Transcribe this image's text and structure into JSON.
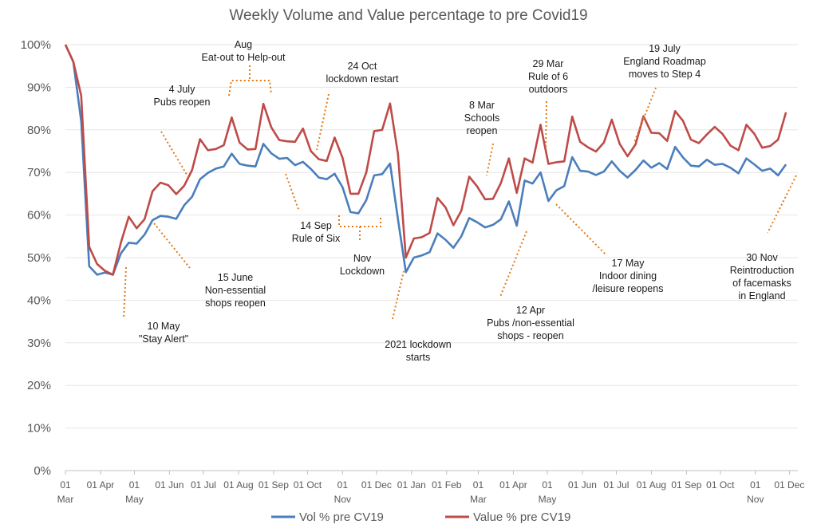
{
  "chart_data": {
    "type": "line",
    "title": "Weekly Volume and Value percentage to pre Covid19",
    "xlabel": "",
    "ylabel": "",
    "ylim": [
      0,
      100
    ],
    "y_ticks": [
      "0%",
      "10%",
      "20%",
      "30%",
      "40%",
      "50%",
      "60%",
      "70%",
      "80%",
      "90%",
      "100%"
    ],
    "x_ticks": [
      {
        "line1": "01",
        "line2": "Mar",
        "week": 0
      },
      {
        "line1": "01 Apr",
        "line2": "",
        "week": 4.43
      },
      {
        "line1": "01",
        "line2": "May",
        "week": 8.71
      },
      {
        "line1": "01 Jun",
        "line2": "",
        "week": 13.14
      },
      {
        "line1": "01 Jul",
        "line2": "",
        "week": 17.43
      },
      {
        "line1": "01 Aug",
        "line2": "",
        "week": 21.86
      },
      {
        "line1": "01 Sep",
        "line2": "",
        "week": 26.29
      },
      {
        "line1": "01 Oct",
        "line2": "",
        "week": 30.57
      },
      {
        "line1": "01",
        "line2": "Nov",
        "week": 35
      },
      {
        "line1": "01 Dec",
        "line2": "",
        "week": 39.29
      },
      {
        "line1": "01 Jan",
        "line2": "",
        "week": 43.71
      },
      {
        "line1": "01 Feb",
        "line2": "",
        "week": 48.14
      },
      {
        "line1": "01",
        "line2": "Mar",
        "week": 52.14
      },
      {
        "line1": "01 Apr",
        "line2": "",
        "week": 56.57
      },
      {
        "line1": "01",
        "line2": "May",
        "week": 60.86
      },
      {
        "line1": "01 Jun",
        "line2": "",
        "week": 65.29
      },
      {
        "line1": "01 Jul",
        "line2": "",
        "week": 69.57
      },
      {
        "line1": "01 Aug",
        "line2": "",
        "week": 74
      },
      {
        "line1": "01 Sep",
        "line2": "",
        "week": 78.43
      },
      {
        "line1": "01 Oct",
        "line2": "",
        "week": 82.71
      },
      {
        "line1": "01",
        "line2": "Nov",
        "week": 87.14
      },
      {
        "line1": "01 Dec",
        "line2": "",
        "week": 91.43
      }
    ],
    "x_weeks_max": 92.5,
    "series": [
      {
        "name": "Vol % pre CV19",
        "color": "#4a7ebb",
        "values": [
          100,
          96,
          82,
          48,
          46,
          46.5,
          46,
          51,
          53.5,
          53.3,
          55.4,
          58.8,
          59.8,
          59.6,
          59.1,
          62.3,
          64.3,
          68.4,
          69.9,
          70.9,
          71.4,
          74.4,
          72,
          71.6,
          71.4,
          76.7,
          74.5,
          73.2,
          73.4,
          71.7,
          72.5,
          70.8,
          68.8,
          68.4,
          69.7,
          66.5,
          60.7,
          60.4,
          63.5,
          69.3,
          69.6,
          72.1,
          59,
          46.6,
          50,
          50.5,
          51.3,
          55.7,
          54.2,
          52.3,
          55,
          59.3,
          58.3,
          57.1,
          57.7,
          59,
          63.2,
          57.5,
          68.1,
          67.4,
          70,
          63.3,
          65.8,
          66.8,
          73.6,
          70.4,
          70.2,
          69.4,
          70.2,
          72.6,
          70.4,
          68.8,
          70.6,
          72.8,
          71.1,
          72.2,
          70.8,
          76,
          73.5,
          71.6,
          71.4,
          73,
          71.8,
          72,
          71.1,
          69.8,
          73.3,
          71.9,
          70.4,
          70.9,
          69.3,
          71.9
        ]
      },
      {
        "name": "Value % pre CV19",
        "color": "#be4b48",
        "values": [
          100,
          96,
          88,
          52.5,
          48.5,
          46.9,
          46,
          53.5,
          59.6,
          56.9,
          59,
          65.6,
          67.6,
          67,
          64.9,
          66.9,
          70.6,
          77.8,
          75.2,
          75.5,
          76.4,
          82.9,
          77,
          75.4,
          75.5,
          86.1,
          80.6,
          77.6,
          77.3,
          77.2,
          80.3,
          75,
          73.1,
          72.7,
          78.2,
          73.4,
          65,
          65,
          70,
          79.7,
          80,
          86.2,
          74.3,
          50,
          54.5,
          54.8,
          55.8,
          64,
          61.8,
          57.6,
          61,
          69,
          66.7,
          63.7,
          63.8,
          67.5,
          73.3,
          65.2,
          73.3,
          72.3,
          81.2,
          72,
          72.4,
          72.6,
          83.1,
          77.2,
          75.9,
          74.9,
          77,
          82.4,
          76.7,
          73.8,
          76.6,
          83.2,
          79.3,
          79.2,
          77.4,
          84.4,
          82.1,
          77.7,
          76.9,
          78.9,
          80.7,
          79,
          76.3,
          75.2,
          81.2,
          79.1,
          75.8,
          76.2,
          77.7,
          84.1
        ]
      }
    ],
    "annotations": [
      {
        "lines": [
          "10 May",
          "\"Stay Alert\""
        ]
      },
      {
        "lines": [
          "15 June",
          "Non-essential",
          "shops reopen"
        ]
      },
      {
        "lines": [
          "4 July",
          "Pubs reopen"
        ]
      },
      {
        "lines": [
          "Aug",
          "Eat-out to Help-out"
        ]
      },
      {
        "lines": [
          "14 Sep",
          "Rule of Six"
        ]
      },
      {
        "lines": [
          "24 Oct",
          "lockdown restart"
        ]
      },
      {
        "lines": [
          "Nov",
          "Lockdown"
        ]
      },
      {
        "lines": [
          "2021 lockdown",
          "starts"
        ]
      },
      {
        "lines": [
          "8 Mar",
          "Schools",
          "reopen"
        ]
      },
      {
        "lines": [
          "29 Mar",
          "Rule of 6",
          "outdoors"
        ]
      },
      {
        "lines": [
          "12 Apr",
          "Pubs /non-essential",
          "shops - reopen"
        ]
      },
      {
        "lines": [
          "17 May",
          "Indoor dining",
          "/leisure reopens"
        ]
      },
      {
        "lines": [
          "19 July",
          "England  Roadmap",
          "moves to Step 4"
        ]
      },
      {
        "lines": [
          "30 Nov",
          "Reintroduction",
          "of facemasks",
          "in England"
        ]
      }
    ],
    "grid": true,
    "legend": "bottom"
  }
}
